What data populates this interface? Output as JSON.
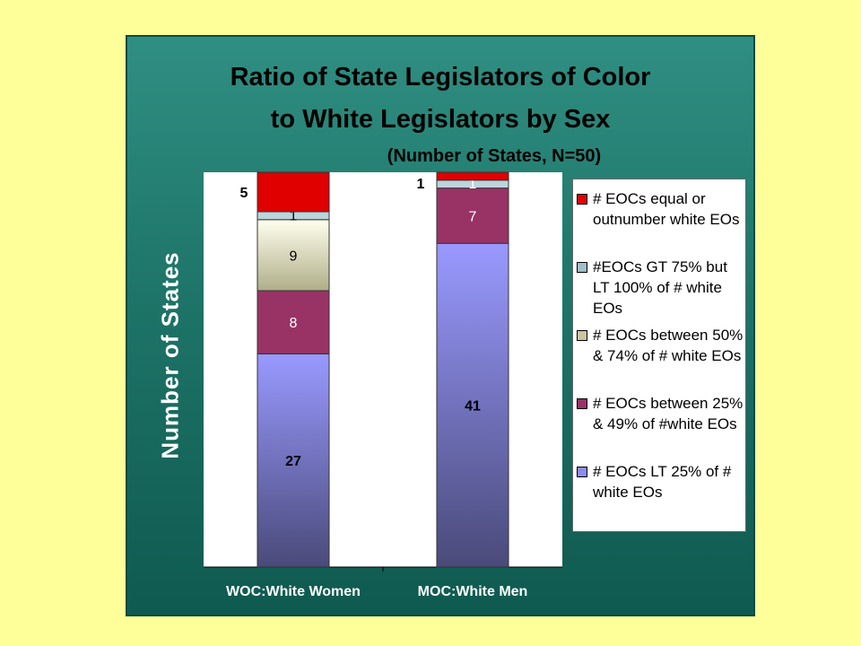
{
  "chart_data": {
    "type": "bar",
    "stacked": true,
    "title": "Ratio of State Legislators of Color",
    "title_line2": "to White Legislators by Sex",
    "subtitle": "(Number of States, N=50)",
    "ylabel": "Number of States",
    "categories": [
      "WOC:White Women",
      "MOC:White Men"
    ],
    "ylim": [
      0,
      50
    ],
    "legend_position": "right",
    "series": [
      {
        "name": "# EOCs LT 25% of # white EOs",
        "values": [
          27,
          41
        ],
        "color": "#8b8bea",
        "labels": [
          "27",
          "41"
        ]
      },
      {
        "name": "# EOCs between 25% & 49% of #white EOs",
        "values": [
          8,
          7
        ],
        "color": "#993366",
        "labels": [
          "8",
          "7"
        ]
      },
      {
        "name": "# EOCs between 50% & 74% of # white EOs",
        "values": [
          9,
          0
        ],
        "color": "#d8d6b0",
        "labels": [
          "9",
          ""
        ]
      },
      {
        "name": "#EOCs GT 75% but LT 100% of # white EOs",
        "values": [
          1,
          1
        ],
        "color": "#bcd4dc",
        "labels": [
          "1",
          "1"
        ]
      },
      {
        "name": "# EOCs equal or outnumber white EOs",
        "values": [
          5,
          1
        ],
        "color": "#e00000",
        "labels": [
          "5",
          "1"
        ]
      }
    ]
  },
  "legend": [
    {
      "color": "#e00000",
      "text": "# EOCs equal or outnumber  white EOs"
    },
    {
      "color": "#9fbfc8",
      "text": " #EOCs GT 75% but LT 100% of # white EOs"
    },
    {
      "color": "#c8c6a0",
      "text": "# EOCs between 50% & 74% of # white EOs"
    },
    {
      "color": "#993366",
      "text": "# EOCs between 25% & 49% of #white EOs"
    },
    {
      "color": "#8b8bea",
      "text": "# EOCs LT 25% of # white EOs"
    }
  ]
}
